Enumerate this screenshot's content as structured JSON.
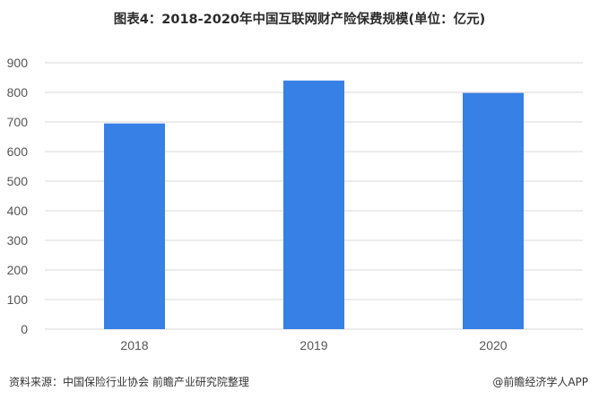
{
  "chart_data": {
    "type": "bar",
    "title": "图表4：2018-2020年中国互联网财产险保费规模(单位：亿元)",
    "categories": [
      "2018",
      "2019",
      "2020"
    ],
    "values": [
      695,
      840,
      798
    ],
    "series": [
      {
        "name": "",
        "values": [
          695,
          840,
          798
        ]
      }
    ],
    "xlabel": "",
    "ylabel": "",
    "ylim": [
      0,
      900
    ],
    "yticks": [
      0,
      100,
      200,
      300,
      400,
      500,
      600,
      700,
      800,
      900
    ],
    "grid": true,
    "legend": "none",
    "bar_color": "#3680e6",
    "grid_color": "#d9d9d9"
  },
  "footer": {
    "source": "资料来源：中国保险行业协会 前瞻产业研究院整理",
    "brand": "@前瞻经济学人APP"
  }
}
